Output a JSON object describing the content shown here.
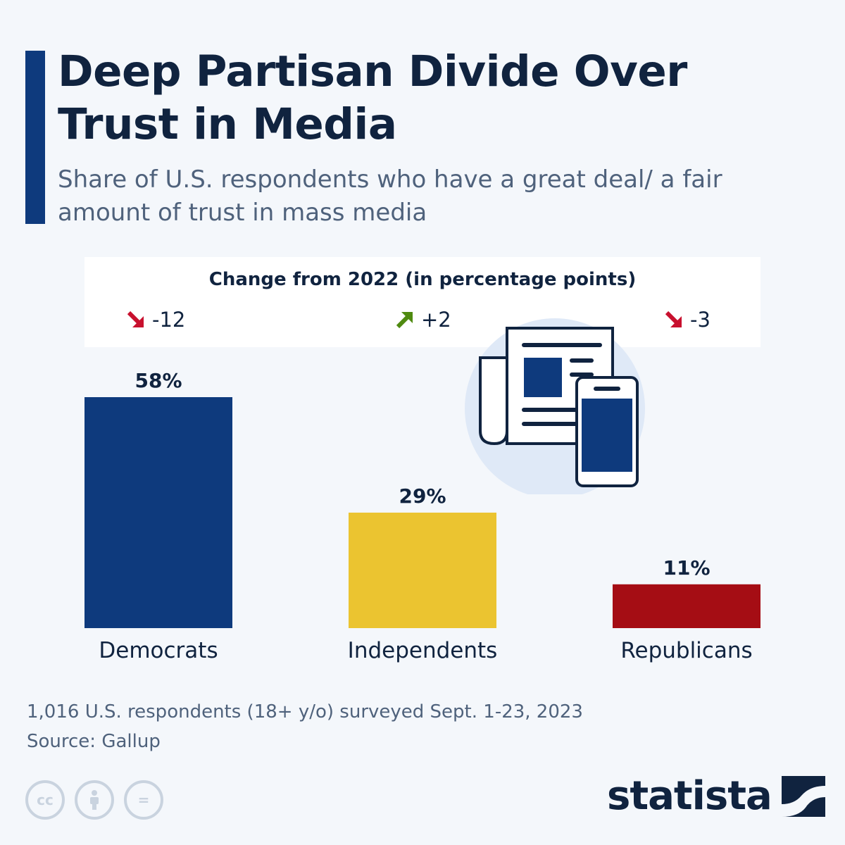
{
  "header": {
    "title": "Deep Partisan Divide Over Trust in Media",
    "subtitle": "Share of U.S. respondents who have a great deal/ a fair amount of trust in mass media"
  },
  "change": {
    "title": "Change from 2022 (in percentage points)",
    "items": [
      {
        "label": "-12",
        "direction": "down",
        "color": "#c8102e"
      },
      {
        "label": "+2",
        "direction": "up",
        "color": "#4f8a10"
      },
      {
        "label": "-3",
        "direction": "down",
        "color": "#c8102e"
      }
    ]
  },
  "chart_data": {
    "type": "bar",
    "title": "Deep Partisan Divide Over Trust in Media",
    "categories": [
      "Democrats",
      "Independents",
      "Republicans"
    ],
    "values": [
      58,
      29,
      11
    ],
    "value_labels": [
      "58%",
      "29%",
      "11%"
    ],
    "colors": [
      "#0e3a7d",
      "#ebc430",
      "#a50d14"
    ],
    "ylabel": "",
    "xlabel": "",
    "ylim": [
      0,
      58
    ],
    "grid": false
  },
  "footer": {
    "note": "1,016 U.S. respondents (18+ y/o) surveyed Sept. 1-23, 2023",
    "source": "Source: Gallup",
    "cc_icons": [
      "cc-icon",
      "attribution-icon",
      "no-derivatives-icon"
    ],
    "cc_glyphs": [
      "cc",
      "=",
      "="
    ],
    "brand": "statista"
  }
}
